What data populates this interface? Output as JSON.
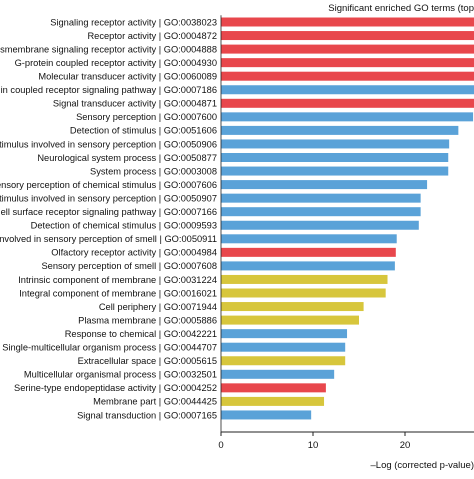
{
  "chart_data": {
    "type": "bar",
    "orientation": "horizontal",
    "title": "Significant enriched GO terms (top",
    "xlabel": "–Log (corrected p-value)",
    "ylabel": "",
    "xlim": [
      0,
      30
    ],
    "xticks": [
      0,
      10,
      20
    ],
    "grid": false,
    "categories": [
      "Signaling receptor activity | GO:0038023",
      "Receptor activity | GO:0004872",
      "esmembrane signaling receptor activity | GO:0004888",
      "G-protein coupled receptor activity | GO:0004930",
      "Molecular transducer activity | GO:0060089",
      "in coupled receptor signaling pathway | GO:0007186",
      "Signal transducer activity | GO:0004871",
      "Sensory perception | GO:0007600",
      "Detection of stimulus | GO:0051606",
      "timulus involved in sensory perception | GO:0050906",
      "Neurological system process | GO:0050877",
      "System process | GO:0003008",
      "ensory perception of chemical stimulus | GO:0007606",
      "timulus involved in sensory perception | GO:0050907",
      "ell surface receptor signaling pathway | GO:0007166",
      "Detection of chemical stimulus | GO:0009593",
      "nvolved in sensory perception of smell | GO:0050911",
      "Olfactory receptor activity | GO:0004984",
      "Sensory perception of smell | GO:0007608",
      "Intrinsic component of membrane | GO:0031224",
      "Integral component of membrane | GO:0016021",
      "Cell periphery | GO:0071944",
      "Plasma membrane | GO:0005886",
      "Response to chemical | GO:0042221",
      "Single-multicellular organism process | GO:0044707",
      "Extracellular space | GO:0005615",
      "Multicellular organismal process | GO:0032501",
      "Serine-type endopeptidase activity | GO:0004252",
      "Membrane part | GO:0044425",
      "Signal transduction | GO:0007165"
    ],
    "values": [
      29.5,
      29.2,
      29.0,
      28.8,
      28.4,
      28.0,
      27.9,
      27.4,
      25.8,
      24.8,
      24.7,
      24.7,
      22.4,
      21.7,
      21.7,
      21.5,
      19.1,
      19.0,
      18.9,
      18.1,
      17.9,
      15.5,
      15.0,
      13.7,
      13.5,
      13.5,
      12.3,
      11.4,
      11.2,
      9.8
    ],
    "categories_group": [
      "MF",
      "MF",
      "MF",
      "MF",
      "MF",
      "BP",
      "MF",
      "BP",
      "BP",
      "BP",
      "BP",
      "BP",
      "BP",
      "BP",
      "BP",
      "BP",
      "BP",
      "MF",
      "BP",
      "CC",
      "CC",
      "CC",
      "CC",
      "BP",
      "BP",
      "CC",
      "BP",
      "MF",
      "CC",
      "BP"
    ],
    "colors": {
      "MF": "#e8474c",
      "BP": "#5aa2d8",
      "CC": "#d7c63c"
    }
  }
}
